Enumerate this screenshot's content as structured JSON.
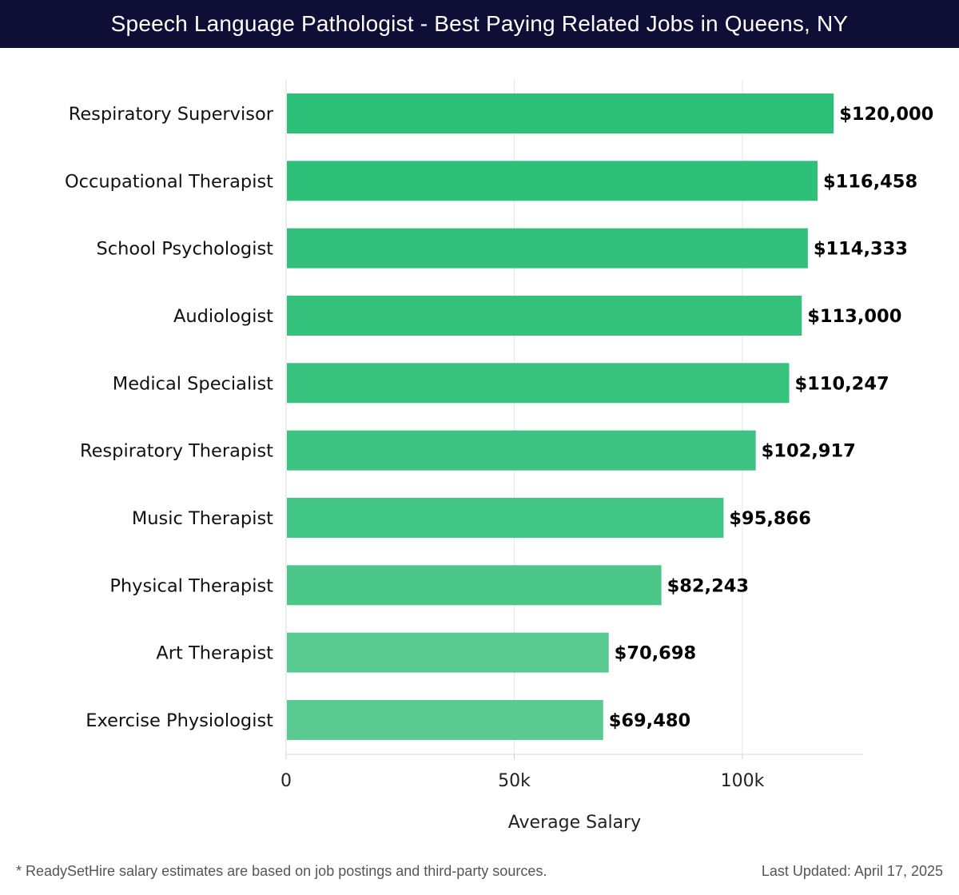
{
  "header": {
    "title": "Speech Language Pathologist - Best Paying Related Jobs in Queens, NY"
  },
  "chart_data": {
    "type": "bar",
    "orientation": "horizontal",
    "categories": [
      "Respiratory Supervisor",
      "Occupational Therapist",
      "School Psychologist",
      "Audiologist",
      "Medical Specialist",
      "Respiratory Therapist",
      "Music Therapist",
      "Physical Therapist",
      "Art Therapist",
      "Exercise Physiologist"
    ],
    "values": [
      120000,
      116458,
      114333,
      113000,
      110247,
      102917,
      95866,
      82243,
      70698,
      69480
    ],
    "value_labels": [
      "$120,000",
      "$116,458",
      "$114,333",
      "$113,000",
      "$110,247",
      "$102,917",
      "$95,866",
      "$82,243",
      "$70,698",
      "$69,480"
    ],
    "xlabel": "Average Salary",
    "ylabel": "",
    "xlim": [
      0,
      126000
    ],
    "x_ticks": [
      0,
      50000,
      100000
    ],
    "x_tick_labels": [
      "0",
      "50k",
      "100k"
    ],
    "grid": "vertical",
    "bar_colors": [
      "#2cbf78",
      "#2ebf79",
      "#31c07b",
      "#33c17c",
      "#37c27e",
      "#3dc381",
      "#41c584",
      "#4cc78a",
      "#58ca91",
      "#59ca92"
    ]
  },
  "footer": {
    "note": "* ReadySetHire salary estimates are based on job postings and third-party sources.",
    "updated": "Last Updated: April 17, 2025"
  }
}
